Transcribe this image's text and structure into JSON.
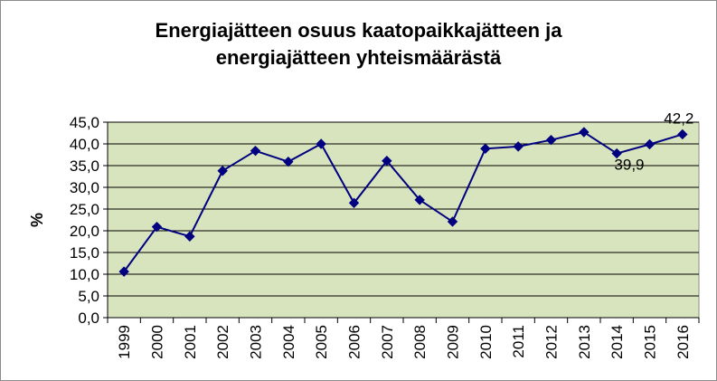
{
  "chart_data": {
    "type": "line",
    "title_line1": "Energiajätteen osuus kaatopaikkajätteen ja",
    "title_line2": "energiajätteen yhteismäärästä",
    "xlabel": "",
    "ylabel": "%",
    "categories": [
      "1999",
      "2000",
      "2001",
      "2002",
      "2003",
      "2004",
      "2005",
      "2006",
      "2007",
      "2008",
      "2009",
      "2010",
      "2011",
      "2012",
      "2013",
      "2014",
      "2015",
      "2016"
    ],
    "series": [
      {
        "name": "Energiajätteen osuus",
        "values": [
          10.6,
          20.9,
          18.7,
          33.8,
          38.4,
          35.9,
          40.0,
          26.4,
          36.1,
          27.1,
          22.1,
          38.9,
          39.4,
          40.9,
          42.7,
          37.8,
          39.9,
          42.2
        ]
      }
    ],
    "ylim": [
      0,
      45
    ],
    "ystep": 5,
    "y_tick_labels": [
      "0,0",
      "5,0",
      "10,0",
      "15,0",
      "20,0",
      "25,0",
      "30,0",
      "35,0",
      "40,0",
      "45,0"
    ],
    "grid": true,
    "annotations": [
      {
        "category": "2015",
        "text": "39,9",
        "position": "below-left"
      },
      {
        "category": "2016",
        "text": "42,2",
        "position": "above"
      }
    ],
    "colors": {
      "plot_background": "#d7e4bd",
      "line": "#000080",
      "gridline": "#000000",
      "frame": "#8c8c8c"
    }
  }
}
